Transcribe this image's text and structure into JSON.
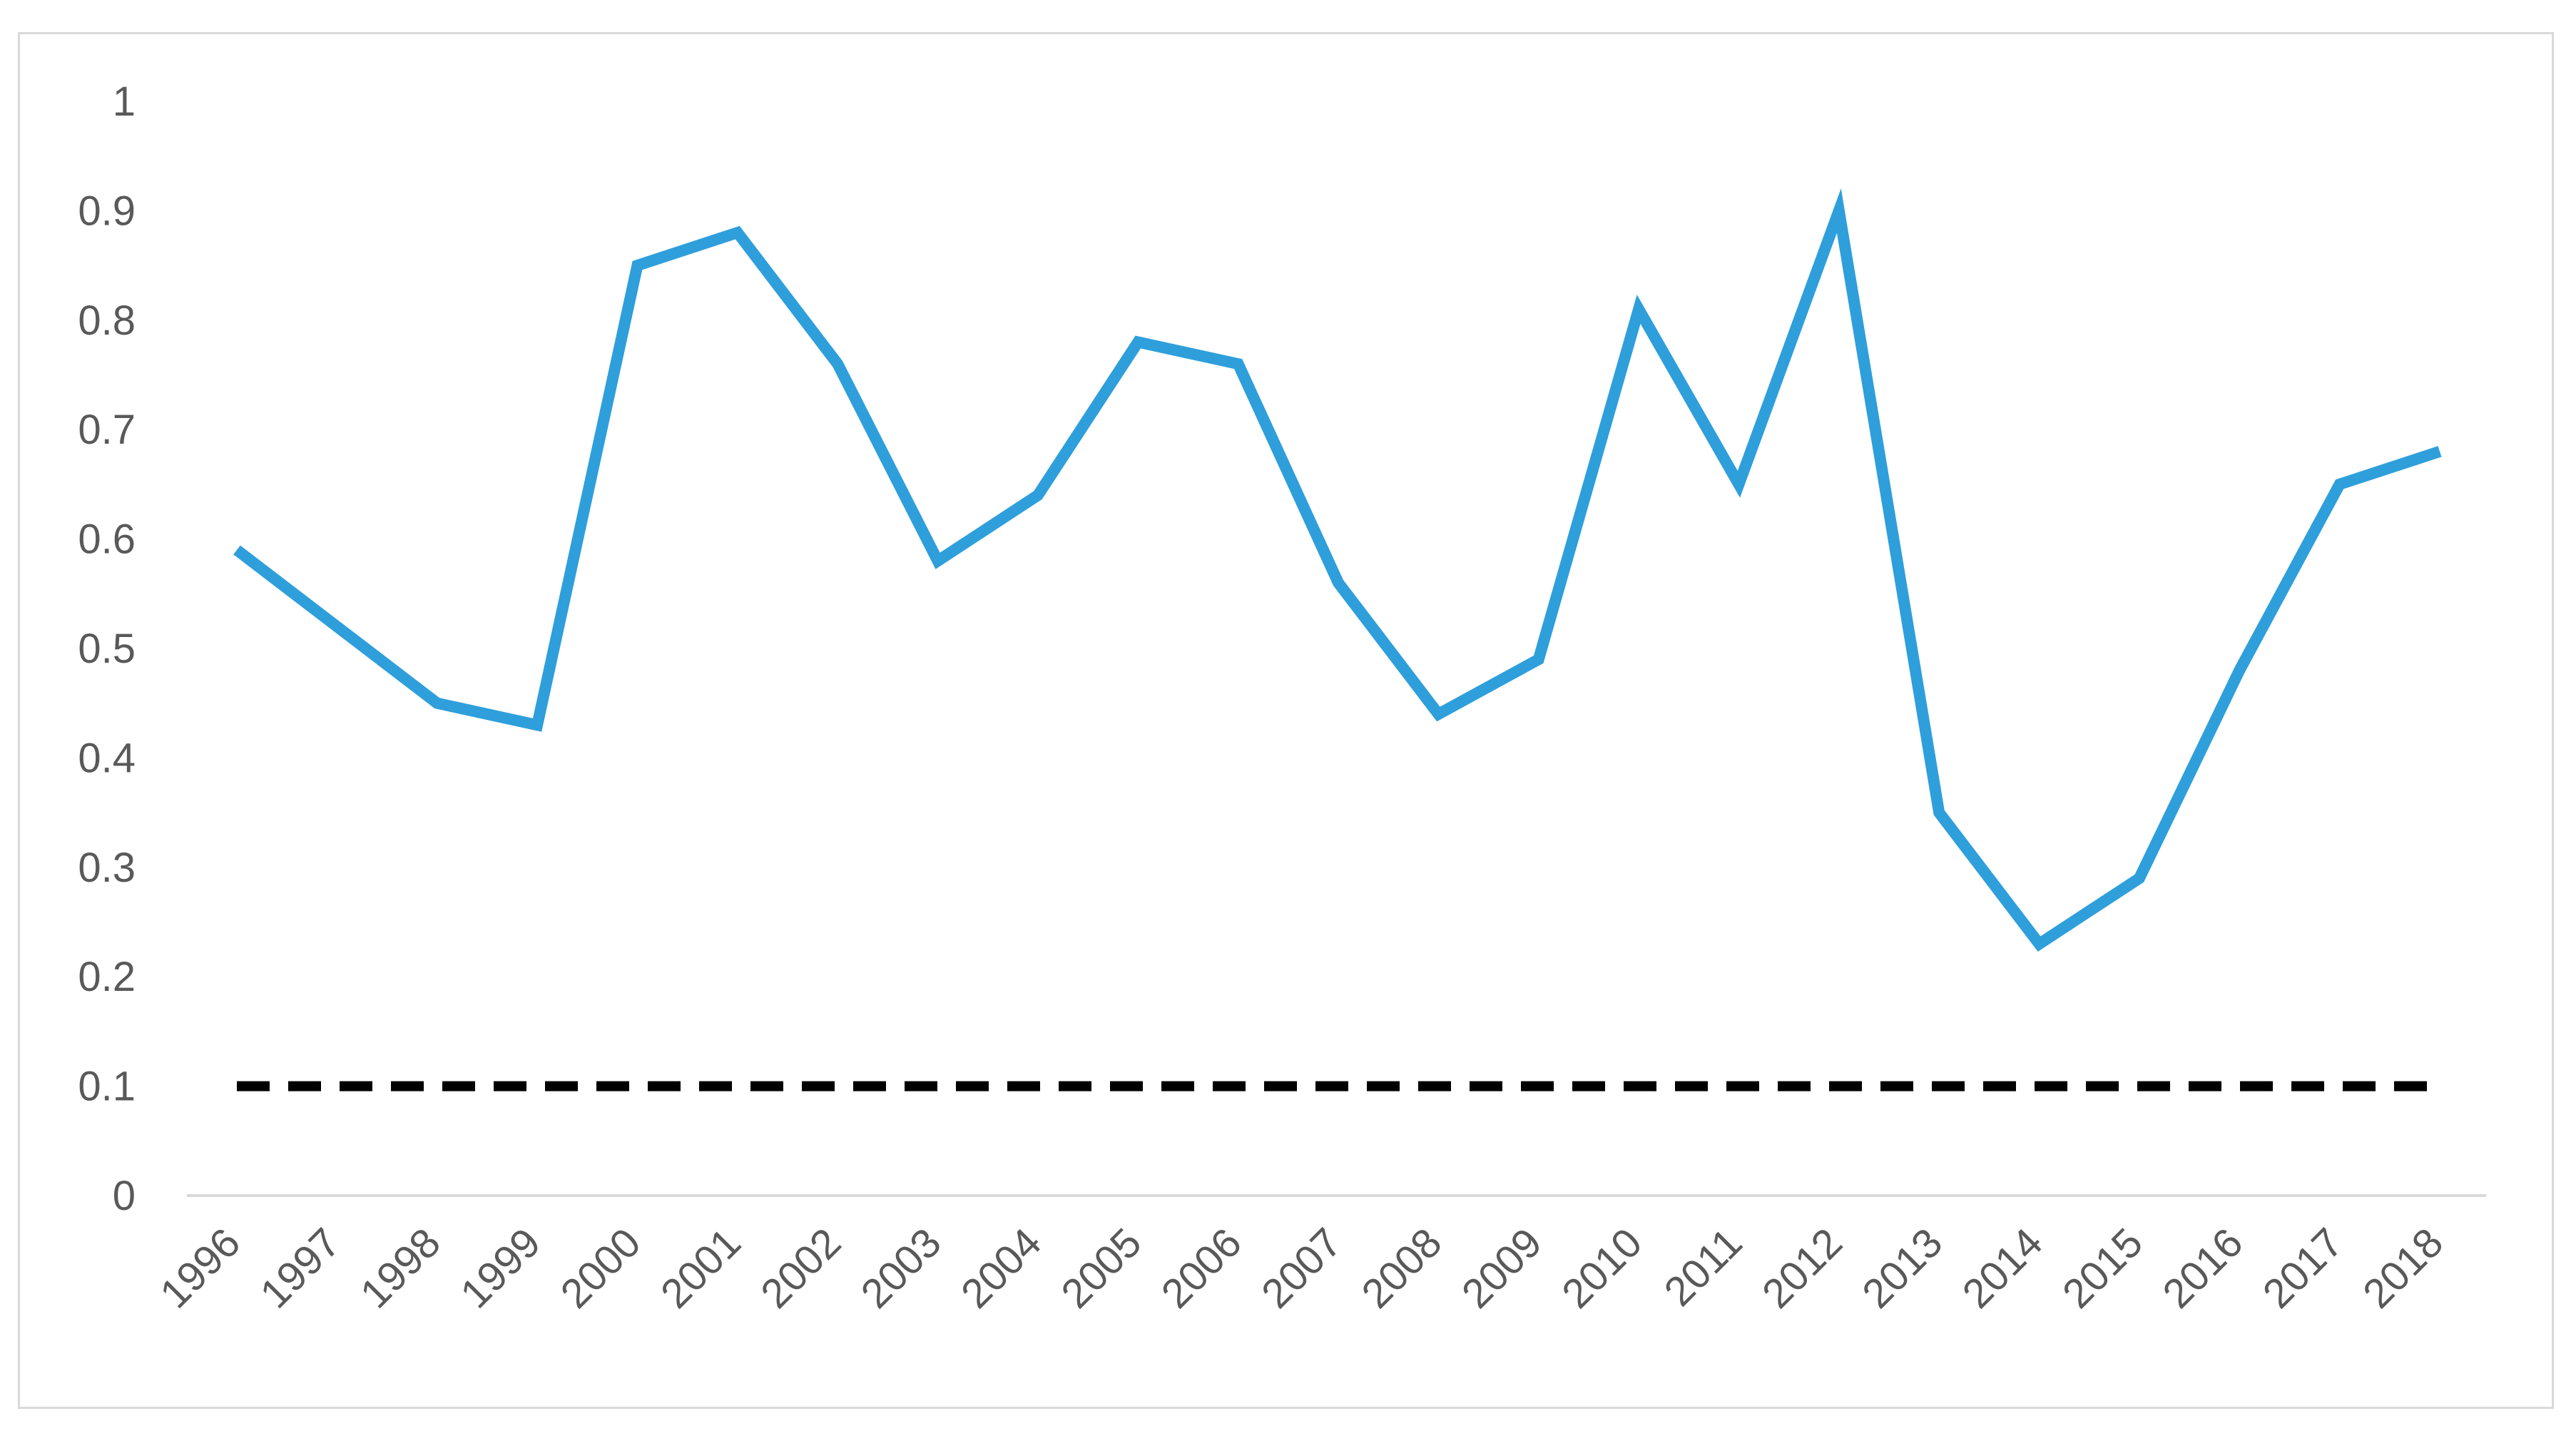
{
  "chart_data": {
    "type": "line",
    "title": "",
    "xlabel": "",
    "ylabel": "",
    "x": [
      "1996",
      "1997",
      "1998",
      "1999",
      "2000",
      "2001",
      "2002",
      "2003",
      "2004",
      "2005",
      "2006",
      "2007",
      "2008",
      "2009",
      "2010",
      "2011",
      "2012",
      "2013",
      "2014",
      "2015",
      "2016",
      "2017",
      "2018"
    ],
    "series": [
      {
        "color": "#2e9fdb",
        "style": "solid",
        "values": [
          0.59,
          0.52,
          0.45,
          0.43,
          0.85,
          0.88,
          0.76,
          0.58,
          0.64,
          0.78,
          0.76,
          0.56,
          0.44,
          0.49,
          0.81,
          0.65,
          0.9,
          0.35,
          0.23,
          0.29,
          0.48,
          0.65,
          0.68
        ]
      },
      {
        "color": "#000000",
        "style": "dashed",
        "values": [
          0.1,
          0.1,
          0.1,
          0.1,
          0.1,
          0.1,
          0.1,
          0.1,
          0.1,
          0.1,
          0.1,
          0.1,
          0.1,
          0.1,
          0.1,
          0.1,
          0.1,
          0.1,
          0.1,
          0.1,
          0.1,
          0.1,
          0.1
        ]
      }
    ],
    "ylim": [
      0,
      1
    ],
    "yticks": [
      "0",
      "0.1",
      "0.2",
      "0.3",
      "0.4",
      "0.5",
      "0.6",
      "0.7",
      "0.8",
      "0.9",
      "1"
    ],
    "grid": false,
    "legend": "none",
    "axis_color": "#d9d9d9",
    "tick_label_color": "#595959"
  }
}
